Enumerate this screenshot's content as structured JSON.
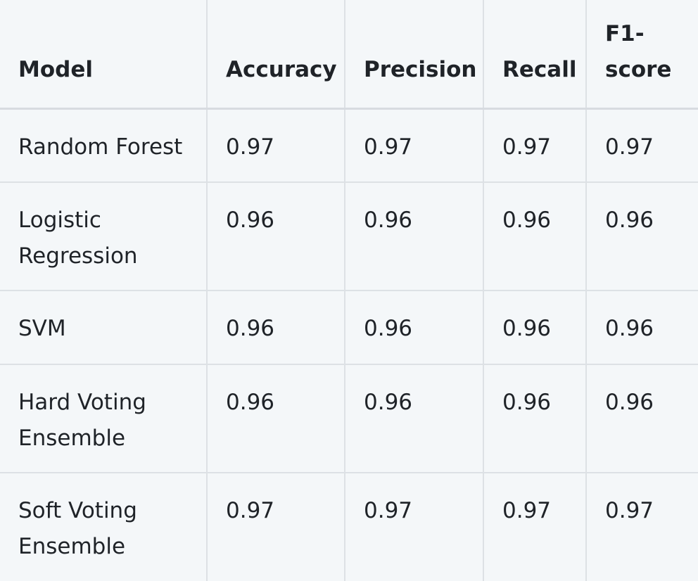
{
  "table": {
    "headers": {
      "model": "Model",
      "accuracy": "Accuracy",
      "precision": "Precision",
      "recall": "Recall",
      "f1": "F1-score"
    },
    "rows": [
      {
        "model": "Random Forest",
        "accuracy": "0.97",
        "precision": "0.97",
        "recall": "0.97",
        "f1": "0.97"
      },
      {
        "model": "Logistic Regression",
        "accuracy": "0.96",
        "precision": "0.96",
        "recall": "0.96",
        "f1": "0.96"
      },
      {
        "model": "SVM",
        "accuracy": "0.96",
        "precision": "0.96",
        "recall": "0.96",
        "f1": "0.96"
      },
      {
        "model": "Hard Voting Ensemble",
        "accuracy": "0.96",
        "precision": "0.96",
        "recall": "0.96",
        "f1": "0.96"
      },
      {
        "model": "Soft Voting Ensemble",
        "accuracy": "0.97",
        "precision": "0.97",
        "recall": "0.97",
        "f1": "0.97"
      }
    ]
  }
}
